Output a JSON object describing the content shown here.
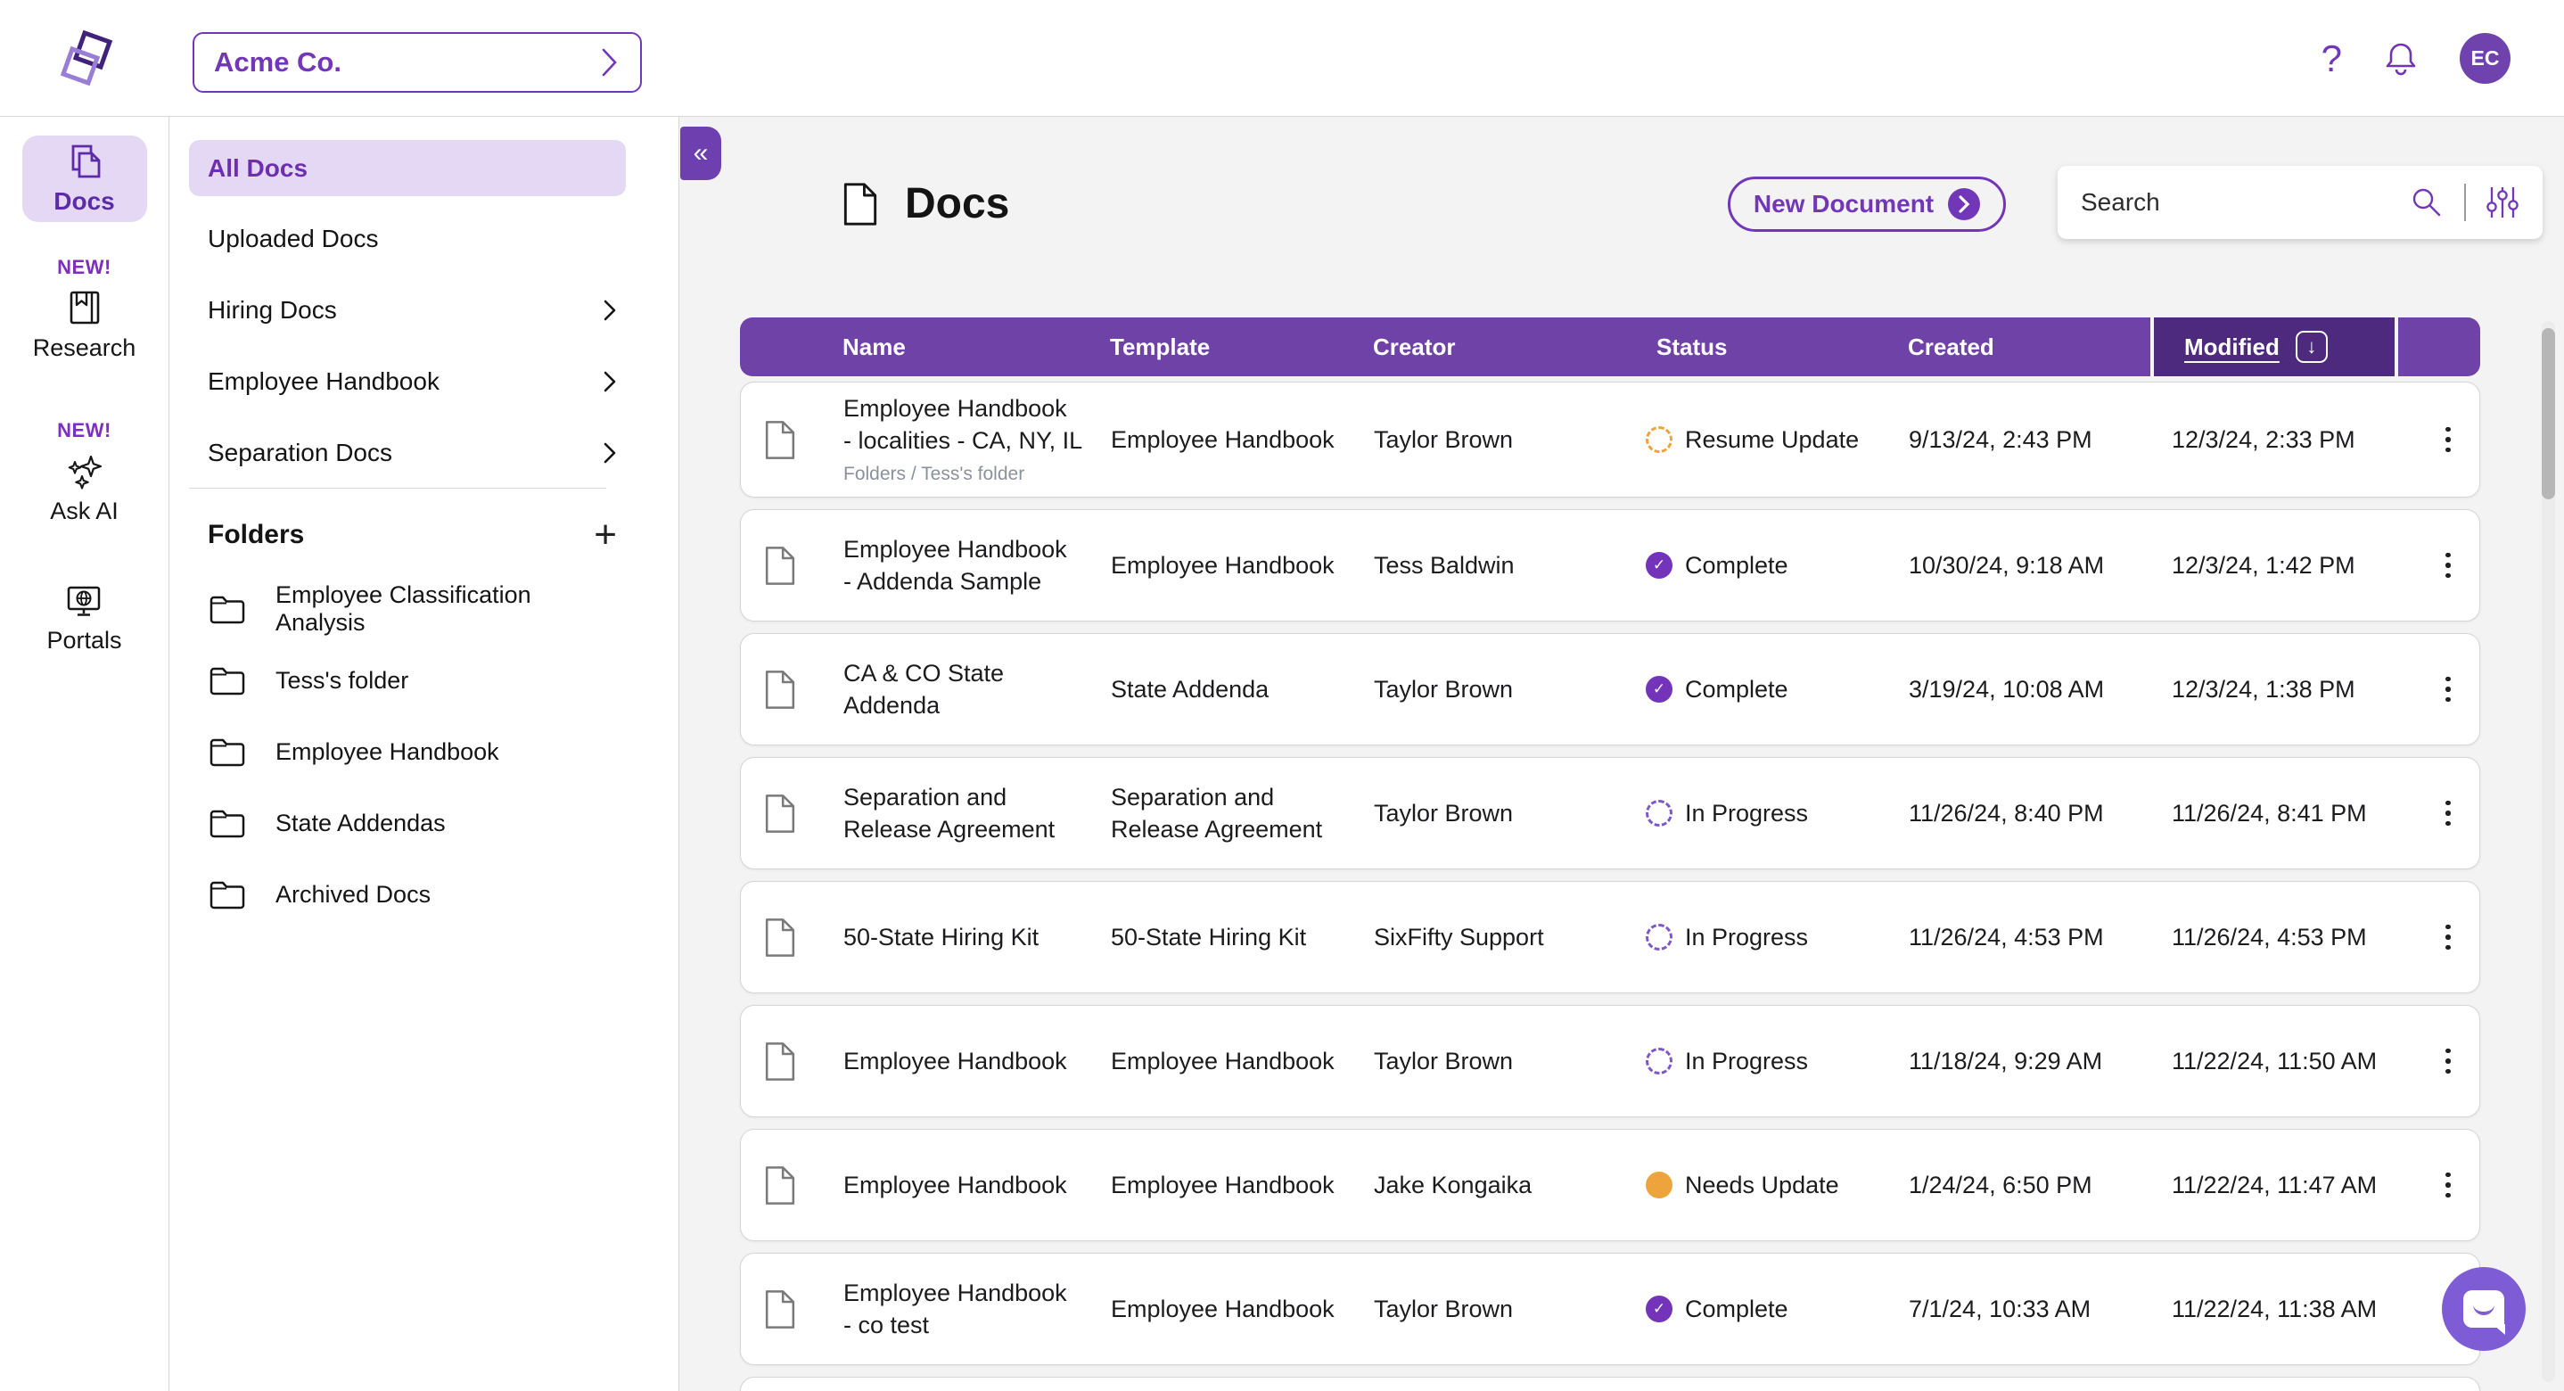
{
  "topbar": {
    "org_selector_label": "Acme Co.",
    "avatar_initials": "EC"
  },
  "rail": {
    "items": [
      {
        "id": "docs",
        "label": "Docs",
        "badge": "",
        "active": true
      },
      {
        "id": "research",
        "label": "Research",
        "badge": "NEW!",
        "active": false
      },
      {
        "id": "ask-ai",
        "label": "Ask AI",
        "badge": "NEW!",
        "active": false
      },
      {
        "id": "portals",
        "label": "Portals",
        "badge": "",
        "active": false
      }
    ]
  },
  "sidebar": {
    "nav": [
      {
        "label": "All Docs",
        "active": true,
        "chevron": false
      },
      {
        "label": "Uploaded Docs",
        "active": false,
        "chevron": false
      },
      {
        "label": "Hiring Docs",
        "active": false,
        "chevron": true
      },
      {
        "label": "Employee Handbook",
        "active": false,
        "chevron": true
      },
      {
        "label": "Separation Docs",
        "active": false,
        "chevron": true
      }
    ],
    "folders_title": "Folders",
    "folders": [
      "Employee Classification Analysis",
      "Tess's folder",
      "Employee Handbook",
      "State Addendas",
      "Archived Docs"
    ]
  },
  "main": {
    "title": "Docs",
    "new_document_label": "New Document",
    "search_placeholder": "Search"
  },
  "table": {
    "columns": [
      "Name",
      "Template",
      "Creator",
      "Status",
      "Created",
      "Modified"
    ],
    "sorted_by": "Modified",
    "sort_direction": "down",
    "rows": [
      {
        "name": "Employee Handbook\n- localities - CA, NY, IL",
        "path": "Folders / Tess's folder",
        "template": "Employee Handbook",
        "creator": "Taylor Brown",
        "status": "Resume Update",
        "status_type": "resume",
        "created": "9/13/24, 2:43 PM",
        "modified": "12/3/24, 2:33 PM"
      },
      {
        "name": "Employee Handbook\n- Addenda Sample",
        "path": "",
        "template": "Employee Handbook",
        "creator": "Tess Baldwin",
        "status": "Complete",
        "status_type": "complete",
        "created": "10/30/24, 9:18 AM",
        "modified": "12/3/24, 1:42 PM"
      },
      {
        "name": "CA & CO State\nAddenda",
        "path": "",
        "template": "State Addenda",
        "creator": "Taylor Brown",
        "status": "Complete",
        "status_type": "complete",
        "created": "3/19/24, 10:08 AM",
        "modified": "12/3/24, 1:38 PM"
      },
      {
        "name": "Separation and\nRelease Agreement",
        "path": "",
        "template": "Separation and\nRelease Agreement",
        "creator": "Taylor Brown",
        "status": "In Progress",
        "status_type": "progress",
        "created": "11/26/24, 8:40 PM",
        "modified": "11/26/24, 8:41 PM"
      },
      {
        "name": "50-State Hiring Kit",
        "path": "",
        "template": "50-State Hiring Kit",
        "creator": "SixFifty Support",
        "status": "In Progress",
        "status_type": "progress",
        "created": "11/26/24, 4:53 PM",
        "modified": "11/26/24, 4:53 PM"
      },
      {
        "name": "Employee Handbook",
        "path": "",
        "template": "Employee Handbook",
        "creator": "Taylor Brown",
        "status": "In Progress",
        "status_type": "progress",
        "created": "11/18/24, 9:29 AM",
        "modified": "11/22/24, 11:50 AM"
      },
      {
        "name": "Employee Handbook",
        "path": "",
        "template": "Employee Handbook",
        "creator": "Jake Kongaika",
        "status": "Needs Update",
        "status_type": "needs",
        "created": "1/24/24, 6:50 PM",
        "modified": "11/22/24, 11:47 AM"
      },
      {
        "name": "Employee Handbook\n- co test",
        "path": "",
        "template": "Employee Handbook",
        "creator": "Taylor Brown",
        "status": "Complete",
        "status_type": "complete",
        "created": "7/1/24, 10:33 AM",
        "modified": "11/22/24, 11:38 AM"
      }
    ]
  },
  "icons": {
    "collapse": "«",
    "help": "?",
    "add_folder": "+",
    "sort_arrow": "↓",
    "check": "✓"
  },
  "colors": {
    "brand_purple": "#7137b8",
    "header_purple": "#6f42a8",
    "header_dark_purple": "#4d2a7e",
    "active_pill": "#e4d8f5",
    "complete": "#7334ba",
    "in_progress": "#7e57c9",
    "warning_orange": "#eda43c",
    "chat_purple": "#7e5cd6",
    "avatar_purple": "#6f42ad"
  }
}
